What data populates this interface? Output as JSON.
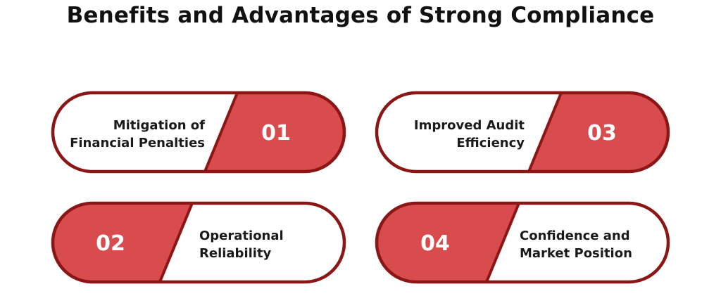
{
  "title": "Benefits and Advantages of Strong Compliance",
  "colors": {
    "accent": "#d94c4e",
    "outline": "#8c1515",
    "text": "#1a1a1a",
    "number_text": "#ffffff"
  },
  "items": [
    {
      "number": "01",
      "lines": [
        "Mitigation of",
        "Financial Penalties"
      ]
    },
    {
      "number": "02",
      "lines": [
        "Operational",
        "Reliability"
      ]
    },
    {
      "number": "03",
      "lines": [
        "Improved Audit",
        "Efficiency"
      ]
    },
    {
      "number": "04",
      "lines": [
        "Confidence and",
        "Market Position"
      ]
    }
  ]
}
